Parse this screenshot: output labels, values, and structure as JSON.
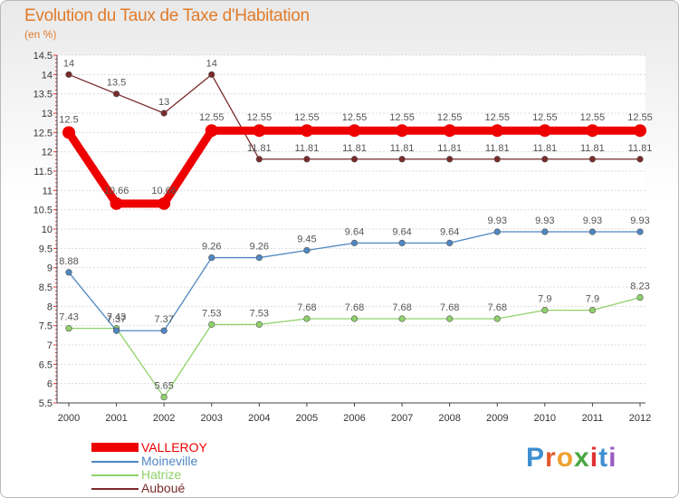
{
  "chart_data": {
    "type": "line",
    "title": "Evolution du Taux de Taxe d'Habitation",
    "subtitle": "(en %)",
    "x": [
      "2000",
      "2001",
      "2002",
      "2003",
      "2004",
      "2005",
      "2006",
      "2007",
      "2008",
      "2009",
      "2010",
      "2011",
      "2012"
    ],
    "ylim": [
      5.5,
      14.5
    ],
    "yticks": [
      "5.5",
      "6",
      "6.5",
      "7",
      "7.5",
      "8",
      "8.5",
      "9",
      "9.5",
      "10",
      "10.5",
      "11",
      "11.5",
      "12",
      "12.5",
      "13",
      "13.5",
      "14",
      "14.5"
    ],
    "grid": "horizontal",
    "legend": "bottom-left",
    "series": [
      {
        "name": "VALLEROY",
        "color": "#ee0000",
        "values": [
          12.5,
          10.66,
          10.66,
          12.55,
          12.55,
          12.55,
          12.55,
          12.55,
          12.55,
          12.55,
          12.55,
          12.55,
          12.55
        ],
        "labels": [
          "12.5",
          "10.66",
          "10.66",
          "12.55",
          "12.55",
          "12.55",
          "12.55",
          "12.55",
          "12.55",
          "12.55",
          "12.55",
          "12.55",
          "12.55"
        ]
      },
      {
        "name": "Moineville",
        "color": "#4f87c2",
        "values": [
          8.88,
          7.37,
          7.37,
          9.26,
          9.26,
          9.45,
          9.64,
          9.64,
          9.64,
          9.93,
          9.93,
          9.93,
          9.93
        ],
        "labels": [
          "8.88",
          "7.37",
          "7.37",
          "9.26",
          "9.26",
          "9.45",
          "9.64",
          "9.64",
          "9.64",
          "9.93",
          "9.93",
          "9.93",
          "9.93"
        ]
      },
      {
        "name": "Hatrize",
        "color": "#8fd16a",
        "values": [
          7.43,
          7.43,
          5.65,
          7.53,
          7.53,
          7.68,
          7.68,
          7.68,
          7.68,
          7.68,
          7.9,
          7.9,
          8.23
        ],
        "labels": [
          "7.43",
          "7.43",
          "5.65",
          "7.53",
          "7.53",
          "7.68",
          "7.68",
          "7.68",
          "7.68",
          "7.68",
          "7.9",
          "7.9",
          "8.23"
        ]
      },
      {
        "name": "Auboué",
        "color": "#7a2a2a",
        "values": [
          14,
          13.5,
          13,
          14,
          11.81,
          11.81,
          11.81,
          11.81,
          11.81,
          11.81,
          11.81,
          11.81,
          11.81
        ],
        "labels": [
          "14",
          "13.5",
          "13",
          "14",
          "11.81",
          "11.81",
          "11.81",
          "11.81",
          "11.81",
          "11.81",
          "11.81",
          "11.81",
          "11.81"
        ]
      }
    ]
  },
  "brand": {
    "logo_letters": [
      "P",
      "r",
      "o",
      "x",
      "i",
      "t",
      "i"
    ],
    "logo_colors": [
      "#3f8fd0",
      "#e35a2c",
      "#f0a030",
      "#4aa640",
      "#e03030",
      "#3f8fd0",
      "#9a5bc4"
    ]
  }
}
